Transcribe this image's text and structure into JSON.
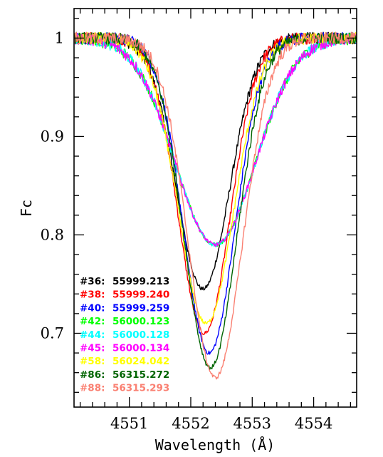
{
  "chart_data": {
    "type": "line",
    "title": "",
    "xlabel": "Wavelength (Å)",
    "ylabel": "Fc",
    "xlim": [
      4550.1,
      4554.7
    ],
    "ylim": [
      0.625,
      1.03
    ],
    "xticks": [
      4551,
      4552,
      4553,
      4554
    ],
    "xtick_labels": [
      "4551",
      "4552",
      "4553",
      "4554"
    ],
    "yticks": [
      0.7,
      0.8,
      0.9,
      1.0
    ],
    "ytick_labels": [
      "0.7",
      "0.8",
      "0.9",
      "1"
    ],
    "grid": false,
    "legend_position": "lower-left",
    "series": [
      {
        "name": "#36: 55999.213",
        "id": "#36:",
        "date": "55999.213",
        "color": "#000000",
        "center": 4552.2,
        "depth": 0.255,
        "width": 0.43,
        "x": [
          4550.1,
          4550.5,
          4550.9,
          4551.2,
          4551.5,
          4551.7,
          4551.9,
          4552.0,
          4552.1,
          4552.2,
          4552.3,
          4552.4,
          4552.5,
          4552.6,
          4552.7,
          4552.8,
          4552.9,
          4553.0,
          4553.2,
          4553.4,
          4553.6,
          4554.0,
          4554.3,
          4554.7
        ],
        "y": [
          1.0,
          0.998,
          0.99,
          0.955,
          0.91,
          0.86,
          0.79,
          0.755,
          0.73,
          0.725,
          0.735,
          0.745,
          0.76,
          0.78,
          0.81,
          0.84,
          0.87,
          0.9,
          0.95,
          0.975,
          0.99,
          1.0,
          1.0,
          1.0
        ]
      },
      {
        "name": "#38: 55999.240",
        "id": "#38:",
        "date": "55999.240",
        "color": "#ff0000",
        "center": 4552.22,
        "depth": 0.3,
        "width": 0.42,
        "x": [
          4550.1,
          4550.5,
          4550.9,
          4551.2,
          4551.5,
          4551.7,
          4551.9,
          4552.0,
          4552.1,
          4552.2,
          4552.3,
          4552.4,
          4552.5,
          4552.6,
          4552.7,
          4552.8,
          4552.9,
          4553.0,
          4553.2,
          4553.4,
          4553.6,
          4554.0,
          4554.3,
          4554.7
        ],
        "y": [
          1.0,
          0.999,
          0.993,
          0.965,
          0.925,
          0.87,
          0.79,
          0.75,
          0.715,
          0.7,
          0.705,
          0.73,
          0.77,
          0.81,
          0.85,
          0.885,
          0.915,
          0.94,
          0.97,
          0.985,
          0.995,
          1.0,
          1.0,
          1.0
        ]
      },
      {
        "name": "#40: 55999.259",
        "id": "#40:",
        "date": "55999.259",
        "color": "#0000ff",
        "center": 4552.3,
        "depth": 0.32,
        "width": 0.42,
        "x": [
          4550.1,
          4550.5,
          4550.9,
          4551.2,
          4551.5,
          4551.7,
          4551.9,
          4552.0,
          4552.1,
          4552.2,
          4552.3,
          4552.4,
          4552.5,
          4552.6,
          4552.7,
          4552.8,
          4552.9,
          4553.0,
          4553.2,
          4553.4,
          4553.6,
          4554.0,
          4554.3,
          4554.7
        ],
        "y": [
          1.0,
          0.999,
          0.995,
          0.975,
          0.94,
          0.89,
          0.82,
          0.77,
          0.725,
          0.695,
          0.68,
          0.69,
          0.725,
          0.77,
          0.82,
          0.86,
          0.9,
          0.935,
          0.97,
          0.985,
          0.995,
          1.0,
          1.0,
          1.0
        ]
      },
      {
        "name": "#42: 56000.123",
        "id": "#42:",
        "date": "56000.123",
        "color": "#00ff00",
        "center": 4552.4,
        "depth": 0.21,
        "width": 0.65,
        "x": [
          4550.1,
          4550.5,
          4550.9,
          4551.2,
          4551.5,
          4551.7,
          4551.9,
          4552.0,
          4552.1,
          4552.2,
          4552.3,
          4552.4,
          4552.5,
          4552.6,
          4552.7,
          4552.8,
          4552.9,
          4553.0,
          4553.2,
          4553.4,
          4553.6,
          4554.0,
          4554.3,
          4554.7
        ],
        "y": [
          1.0,
          0.999,
          0.995,
          0.975,
          0.93,
          0.89,
          0.855,
          0.835,
          0.815,
          0.805,
          0.8,
          0.795,
          0.795,
          0.8,
          0.81,
          0.83,
          0.85,
          0.87,
          0.915,
          0.95,
          0.975,
          0.995,
          1.0,
          1.0
        ]
      },
      {
        "name": "#44: 56000.128",
        "id": "#44:",
        "date": "56000.128",
        "color": "#00ffff",
        "center": 4552.4,
        "depth": 0.21,
        "width": 0.65,
        "x": [
          4550.1,
          4550.5,
          4550.9,
          4551.2,
          4551.5,
          4551.7,
          4551.9,
          4552.0,
          4552.1,
          4552.2,
          4552.3,
          4552.4,
          4552.5,
          4552.6,
          4552.7,
          4552.8,
          4552.9,
          4553.0,
          4553.2,
          4553.4,
          4553.6,
          4554.0,
          4554.3,
          4554.7
        ],
        "y": [
          1.0,
          0.999,
          0.995,
          0.975,
          0.935,
          0.895,
          0.86,
          0.84,
          0.82,
          0.81,
          0.8,
          0.795,
          0.79,
          0.795,
          0.805,
          0.825,
          0.845,
          0.865,
          0.91,
          0.945,
          0.97,
          0.995,
          1.0,
          1.0
        ]
      },
      {
        "name": "#45: 56000.134",
        "id": "#45:",
        "date": "56000.134",
        "color": "#ff00ff",
        "center": 4552.4,
        "depth": 0.21,
        "width": 0.65,
        "x": [
          4550.1,
          4550.5,
          4550.9,
          4551.2,
          4551.5,
          4551.7,
          4551.9,
          4552.0,
          4552.1,
          4552.2,
          4552.3,
          4552.4,
          4552.5,
          4552.6,
          4552.7,
          4552.8,
          4552.9,
          4553.0,
          4553.2,
          4553.4,
          4553.6,
          4554.0,
          4554.3,
          4554.7
        ],
        "y": [
          1.0,
          0.999,
          0.995,
          0.98,
          0.94,
          0.9,
          0.86,
          0.84,
          0.82,
          0.81,
          0.8,
          0.795,
          0.795,
          0.8,
          0.81,
          0.825,
          0.845,
          0.87,
          0.915,
          0.95,
          0.975,
          0.995,
          1.0,
          1.0
        ]
      },
      {
        "name": "#58: 56024.042",
        "id": "#58:",
        "date": "56024.042",
        "color": "#ffff00",
        "center": 4552.25,
        "depth": 0.29,
        "width": 0.45,
        "x": [
          4550.1,
          4550.5,
          4550.9,
          4551.2,
          4551.5,
          4551.7,
          4551.9,
          4552.0,
          4552.1,
          4552.2,
          4552.3,
          4552.4,
          4552.5,
          4552.6,
          4552.7,
          4552.8,
          4552.9,
          4553.0,
          4553.2,
          4553.4,
          4553.6,
          4554.0,
          4554.3,
          4554.7
        ],
        "y": [
          1.0,
          0.999,
          0.996,
          0.98,
          0.945,
          0.9,
          0.83,
          0.78,
          0.735,
          0.71,
          0.705,
          0.72,
          0.755,
          0.8,
          0.84,
          0.88,
          0.91,
          0.935,
          0.97,
          0.985,
          0.995,
          1.0,
          1.0,
          1.0
        ]
      },
      {
        "name": "#86: 56315.272",
        "id": "#86:",
        "date": "56315.272",
        "color": "#006400",
        "center": 4552.32,
        "depth": 0.335,
        "width": 0.43,
        "x": [
          4550.1,
          4550.5,
          4550.9,
          4551.2,
          4551.5,
          4551.7,
          4551.9,
          4552.0,
          4552.1,
          4552.2,
          4552.3,
          4552.4,
          4552.5,
          4552.6,
          4552.7,
          4552.8,
          4552.9,
          4553.0,
          4553.2,
          4553.4,
          4553.6,
          4554.0,
          4554.3,
          4554.7
        ],
        "y": [
          1.0,
          0.999,
          0.996,
          0.98,
          0.945,
          0.9,
          0.83,
          0.78,
          0.72,
          0.685,
          0.665,
          0.665,
          0.69,
          0.74,
          0.79,
          0.84,
          0.88,
          0.915,
          0.96,
          0.98,
          0.995,
          1.0,
          1.0,
          1.0
        ]
      },
      {
        "name": "#88: 56315.293",
        "id": "#88:",
        "date": "56315.293",
        "color": "#fa8072",
        "center": 4552.4,
        "depth": 0.345,
        "width": 0.44,
        "x": [
          4550.1,
          4550.5,
          4550.9,
          4551.2,
          4551.5,
          4551.7,
          4551.9,
          4552.0,
          4552.1,
          4552.2,
          4552.3,
          4552.4,
          4552.5,
          4552.6,
          4552.7,
          4552.8,
          4552.9,
          4553.0,
          4553.2,
          4553.4,
          4553.6,
          4554.0,
          4554.3,
          4554.7
        ],
        "y": [
          1.0,
          0.999,
          0.997,
          0.985,
          0.955,
          0.915,
          0.85,
          0.8,
          0.75,
          0.7,
          0.67,
          0.655,
          0.665,
          0.7,
          0.75,
          0.8,
          0.85,
          0.89,
          0.945,
          0.975,
          0.99,
          1.0,
          1.0,
          1.0
        ]
      }
    ]
  }
}
